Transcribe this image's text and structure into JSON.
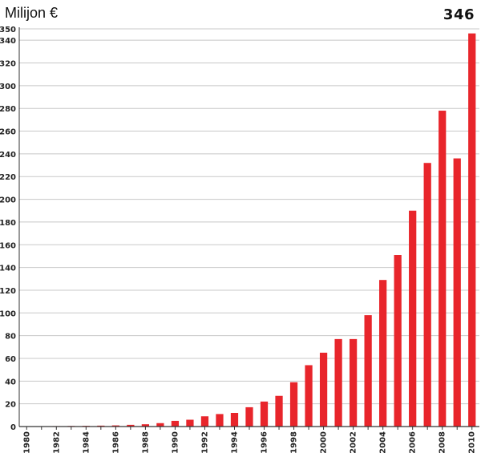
{
  "chart_data": {
    "type": "bar",
    "ylabel": "Milijon €",
    "annotation": "346",
    "ylim": [
      0,
      350
    ],
    "yticks": [
      0,
      20,
      40,
      60,
      80,
      100,
      120,
      140,
      160,
      180,
      200,
      220,
      240,
      260,
      280,
      300,
      320,
      340,
      350
    ],
    "categories": [
      "1980",
      "1981",
      "1982",
      "1983",
      "1984",
      "1985",
      "1986",
      "1987",
      "1988",
      "1989",
      "1990",
      "1991",
      "1992",
      "1993",
      "1994",
      "1995",
      "1996",
      "1997",
      "1998",
      "1999",
      "2000",
      "2001",
      "2002",
      "2003",
      "2004",
      "2005",
      "2006",
      "2007",
      "2008",
      "2009",
      "2010"
    ],
    "xtick_labels": [
      "1980",
      "1982",
      "1984",
      "1986",
      "1988",
      "1990",
      "1992",
      "1994",
      "1996",
      "1998",
      "2000",
      "2002",
      "2004",
      "2006",
      "2008",
      "2010"
    ],
    "values": [
      0.3,
      0.3,
      0.4,
      0.5,
      0.6,
      0.8,
      1,
      1.5,
      2,
      3,
      5,
      6,
      9,
      11,
      12,
      17,
      22,
      27,
      39,
      54,
      65,
      77,
      77,
      98,
      129,
      151,
      190,
      232,
      278,
      236,
      346
    ],
    "grid": true,
    "bar_color": "#e8252b",
    "grid_color": "#c8c8c8",
    "axis_color": "#333333"
  }
}
